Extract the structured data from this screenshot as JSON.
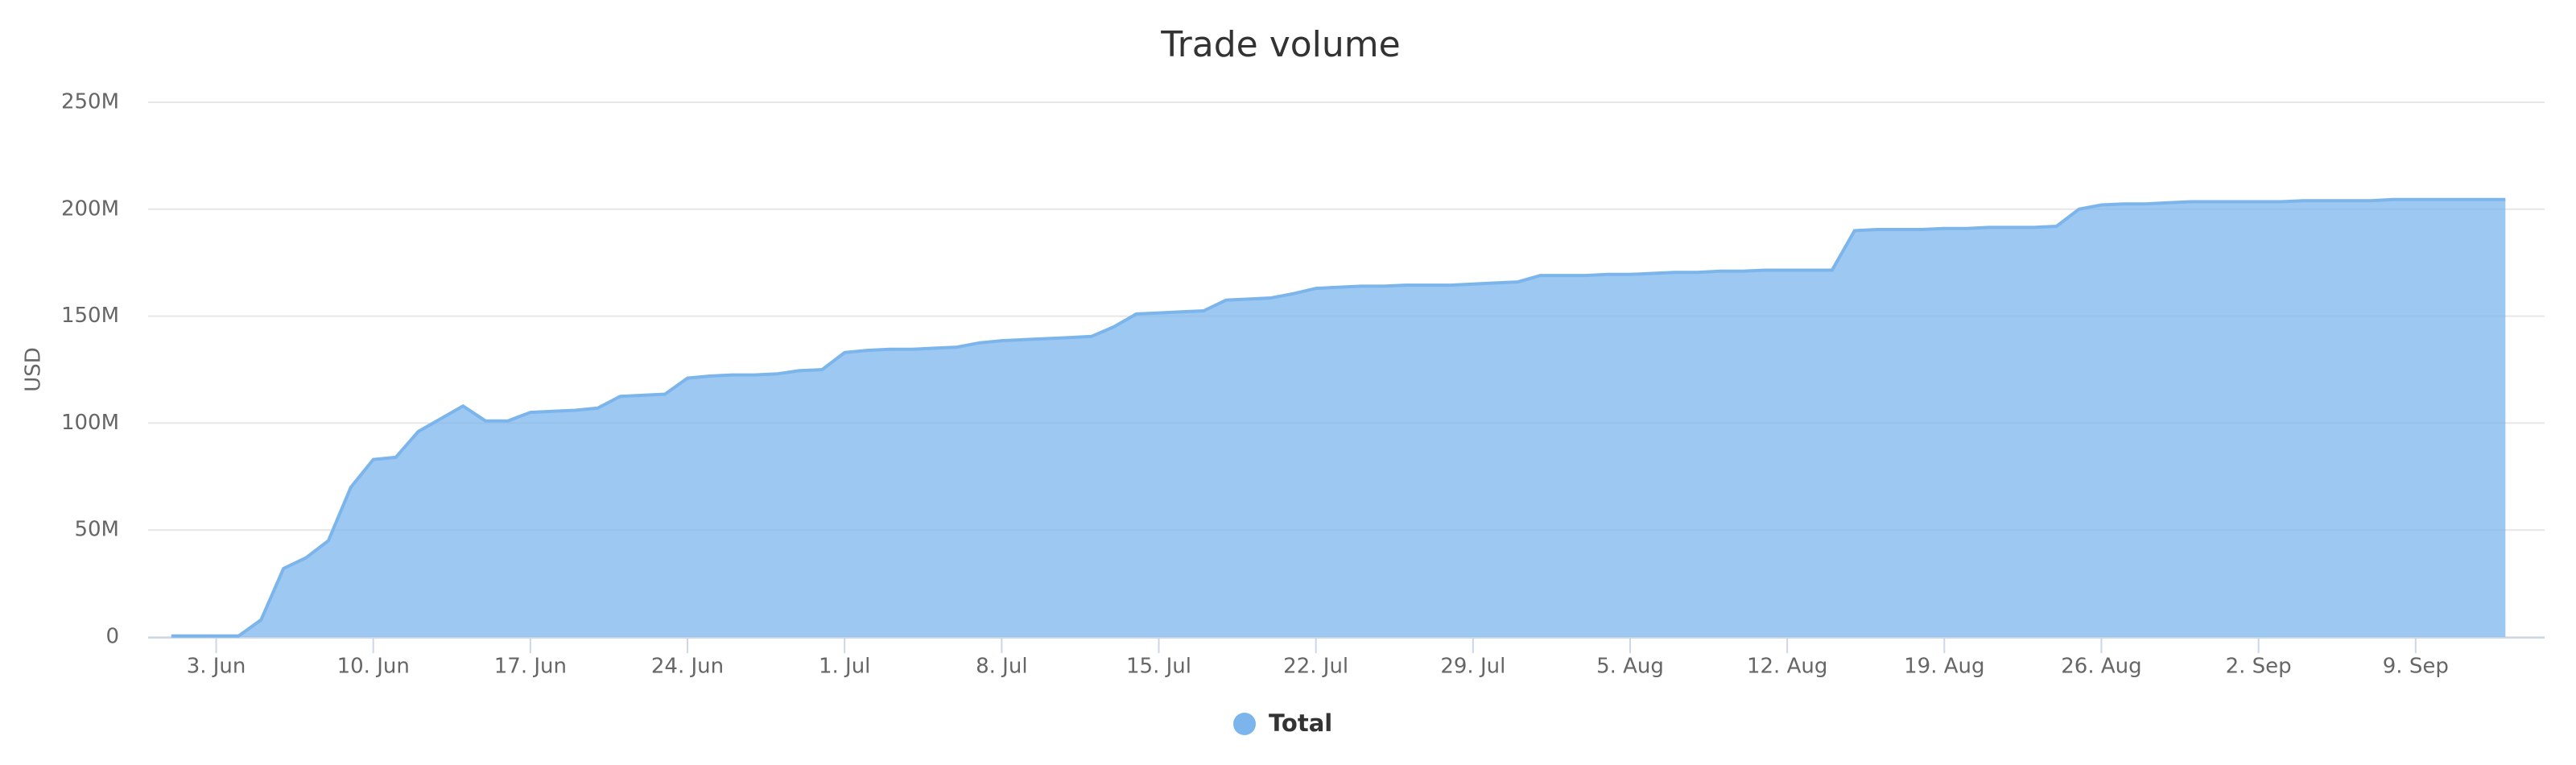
{
  "chart_data": {
    "type": "area",
    "title": "Trade volume",
    "y_label": "USD",
    "categories": [
      null,
      null,
      "3. Jun",
      null,
      null,
      null,
      null,
      null,
      null,
      "10. Jun",
      null,
      null,
      null,
      null,
      null,
      null,
      "17. Jun",
      null,
      null,
      null,
      null,
      null,
      null,
      "24. Jun",
      null,
      null,
      null,
      null,
      null,
      null,
      "1. Jul",
      null,
      null,
      null,
      null,
      null,
      null,
      "8. Jul",
      null,
      null,
      null,
      null,
      null,
      null,
      "15. Jul",
      null,
      null,
      null,
      null,
      null,
      null,
      "22. Jul",
      null,
      null,
      null,
      null,
      null,
      null,
      "29. Jul",
      null,
      null,
      null,
      null,
      null,
      null,
      "5. Aug",
      null,
      null,
      null,
      null,
      null,
      null,
      "12. Aug",
      null,
      null,
      null,
      null,
      null,
      null,
      "19. Aug",
      null,
      null,
      null,
      null,
      null,
      null,
      "26. Aug",
      null,
      null,
      null,
      null,
      null,
      null,
      "2. Sep",
      null,
      null,
      null,
      null,
      null,
      null,
      "9. Sep",
      null,
      null,
      null,
      null
    ],
    "series": [
      {
        "name": "Total",
        "color": "#7cb5ec",
        "values": [
          500000,
          500000,
          500000,
          500000,
          8000000,
          32000000,
          37000000,
          45000000,
          70000000,
          83000000,
          84000000,
          96000000,
          102000000,
          108000000,
          101000000,
          101000000,
          105000000,
          105500000,
          106000000,
          107000000,
          112500000,
          113000000,
          113500000,
          121000000,
          122000000,
          122500000,
          122500000,
          123000000,
          124500000,
          125000000,
          133000000,
          134000000,
          134500000,
          134500000,
          135000000,
          135500000,
          137500000,
          138500000,
          139000000,
          139500000,
          140000000,
          140500000,
          145000000,
          151000000,
          151500000,
          152000000,
          152500000,
          157500000,
          158000000,
          158500000,
          160500000,
          163000000,
          163500000,
          164000000,
          164000000,
          164500000,
          164500000,
          164500000,
          165000000,
          165500000,
          166000000,
          169000000,
          169000000,
          169000000,
          169500000,
          169500000,
          170000000,
          170500000,
          170500000,
          171000000,
          171000000,
          171500000,
          171500000,
          171500000,
          171500000,
          190000000,
          190500000,
          190500000,
          190500000,
          191000000,
          191000000,
          191500000,
          191500000,
          191500000,
          192000000,
          200000000,
          202000000,
          202500000,
          202500000,
          203000000,
          203500000,
          203500000,
          203500000,
          203500000,
          203500000,
          204000000,
          204000000,
          204000000,
          204000000,
          204500000,
          204500000,
          204500000,
          204500000,
          204500000,
          204500000
        ]
      }
    ],
    "ylim": [
      0,
      250000000
    ],
    "yticks": [
      0,
      {
        "value": 50000000,
        "label": "50M"
      },
      {
        "value": 100000000,
        "label": "100M"
      },
      {
        "value": 150000000,
        "label": "150M"
      },
      {
        "value": 200000000,
        "label": "200M"
      },
      {
        "value": 250000000,
        "label": "250M"
      }
    ],
    "grid": true
  }
}
